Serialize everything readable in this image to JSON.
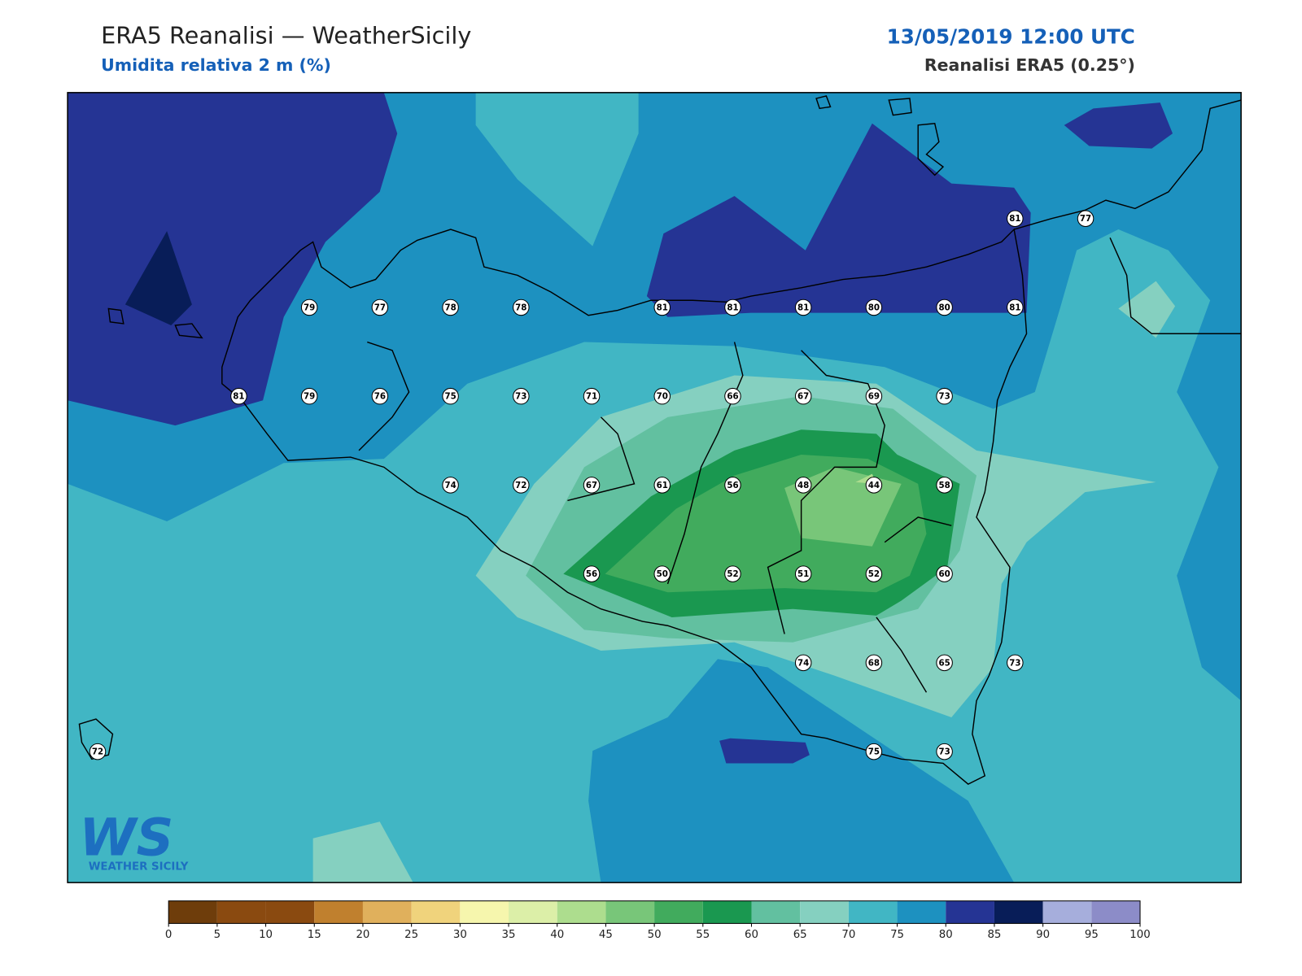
{
  "header": {
    "title": "ERA5 Reanalisi — WeatherSicily",
    "subtitle": "Umidita relativa 2 m (%)",
    "datetime": "13/05/2019 12:00 UTC",
    "source": "Reanalisi ERA5 (0.25°)"
  },
  "map": {
    "stations": [
      81,
      77,
      79,
      77,
      78,
      78,
      81,
      81,
      81,
      80,
      80,
      81,
      81,
      79,
      76,
      75,
      73,
      71,
      70,
      66,
      67,
      69,
      73,
      74,
      72,
      67,
      61,
      56,
      48,
      44,
      58,
      56,
      50,
      52,
      51,
      52,
      60,
      74,
      68,
      65,
      73,
      72,
      75,
      73
    ]
  },
  "colorbar": {
    "ticks": [
      0,
      5,
      10,
      15,
      20,
      25,
      30,
      35,
      40,
      45,
      50,
      55,
      60,
      65,
      70,
      75,
      80,
      85,
      90,
      95,
      100
    ],
    "colors": [
      "#6e3d0b",
      "#8a4a10",
      "#8a4a10",
      "#c0802e",
      "#e0b05c",
      "#f0d37c",
      "#f6f6ad",
      "#dcefa8",
      "#addd8e",
      "#78c679",
      "#41ab5d",
      "#1a9850",
      "#62c0a0",
      "#85d0c0",
      "#41b6c4",
      "#1d91c0",
      "#253494",
      "#081d58",
      "#a6aedc",
      "#8c8cc8"
    ]
  },
  "logo": {
    "mark": "WS",
    "name": "WEATHER SICILY"
  }
}
